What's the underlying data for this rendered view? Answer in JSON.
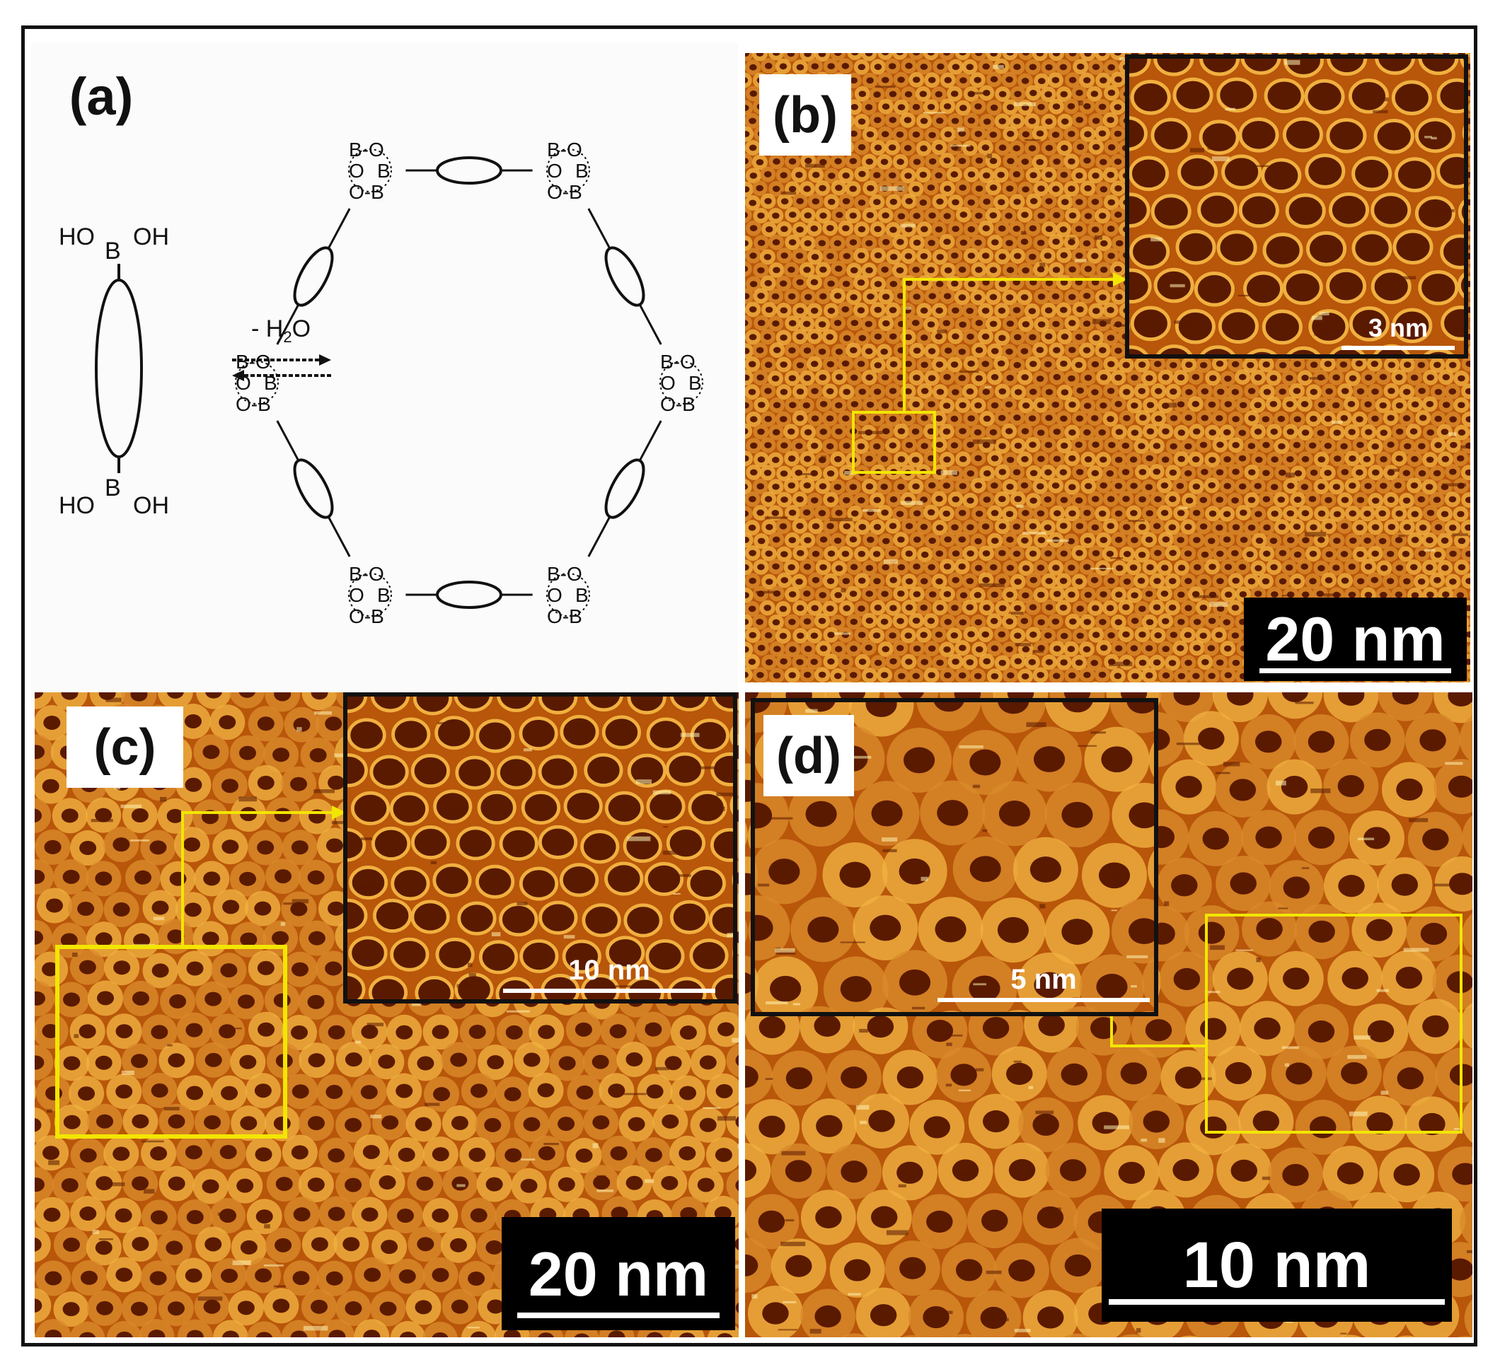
{
  "panels": {
    "a": {
      "label": "(a)",
      "monomer_top": {
        "left": "HO",
        "right": "OH",
        "center": "B"
      },
      "monomer_bottom": {
        "left": "HO",
        "right": "OH",
        "center": "B"
      },
      "reaction": "- H",
      "reaction_sub": "2",
      "reaction_tail": "O",
      "ring_labels": {
        "bo": "B-O",
        "ob": "O-B",
        "o": "O",
        "b": "B"
      }
    },
    "b": {
      "label": "(b)",
      "scale": "20 nm",
      "inset_scale": "3 nm"
    },
    "c": {
      "label": "(c)",
      "scale": "20 nm",
      "inset_scale": "10 nm"
    },
    "d": {
      "label": "(d)",
      "scale": "10 nm",
      "inset_scale": "5 nm"
    }
  },
  "colors": {
    "stm_dark": "#5a1a00",
    "stm_mid": "#b8560a",
    "stm_light": "#f0b040",
    "stm_bright": "#fff3b0",
    "highlight": "#f2e600"
  }
}
